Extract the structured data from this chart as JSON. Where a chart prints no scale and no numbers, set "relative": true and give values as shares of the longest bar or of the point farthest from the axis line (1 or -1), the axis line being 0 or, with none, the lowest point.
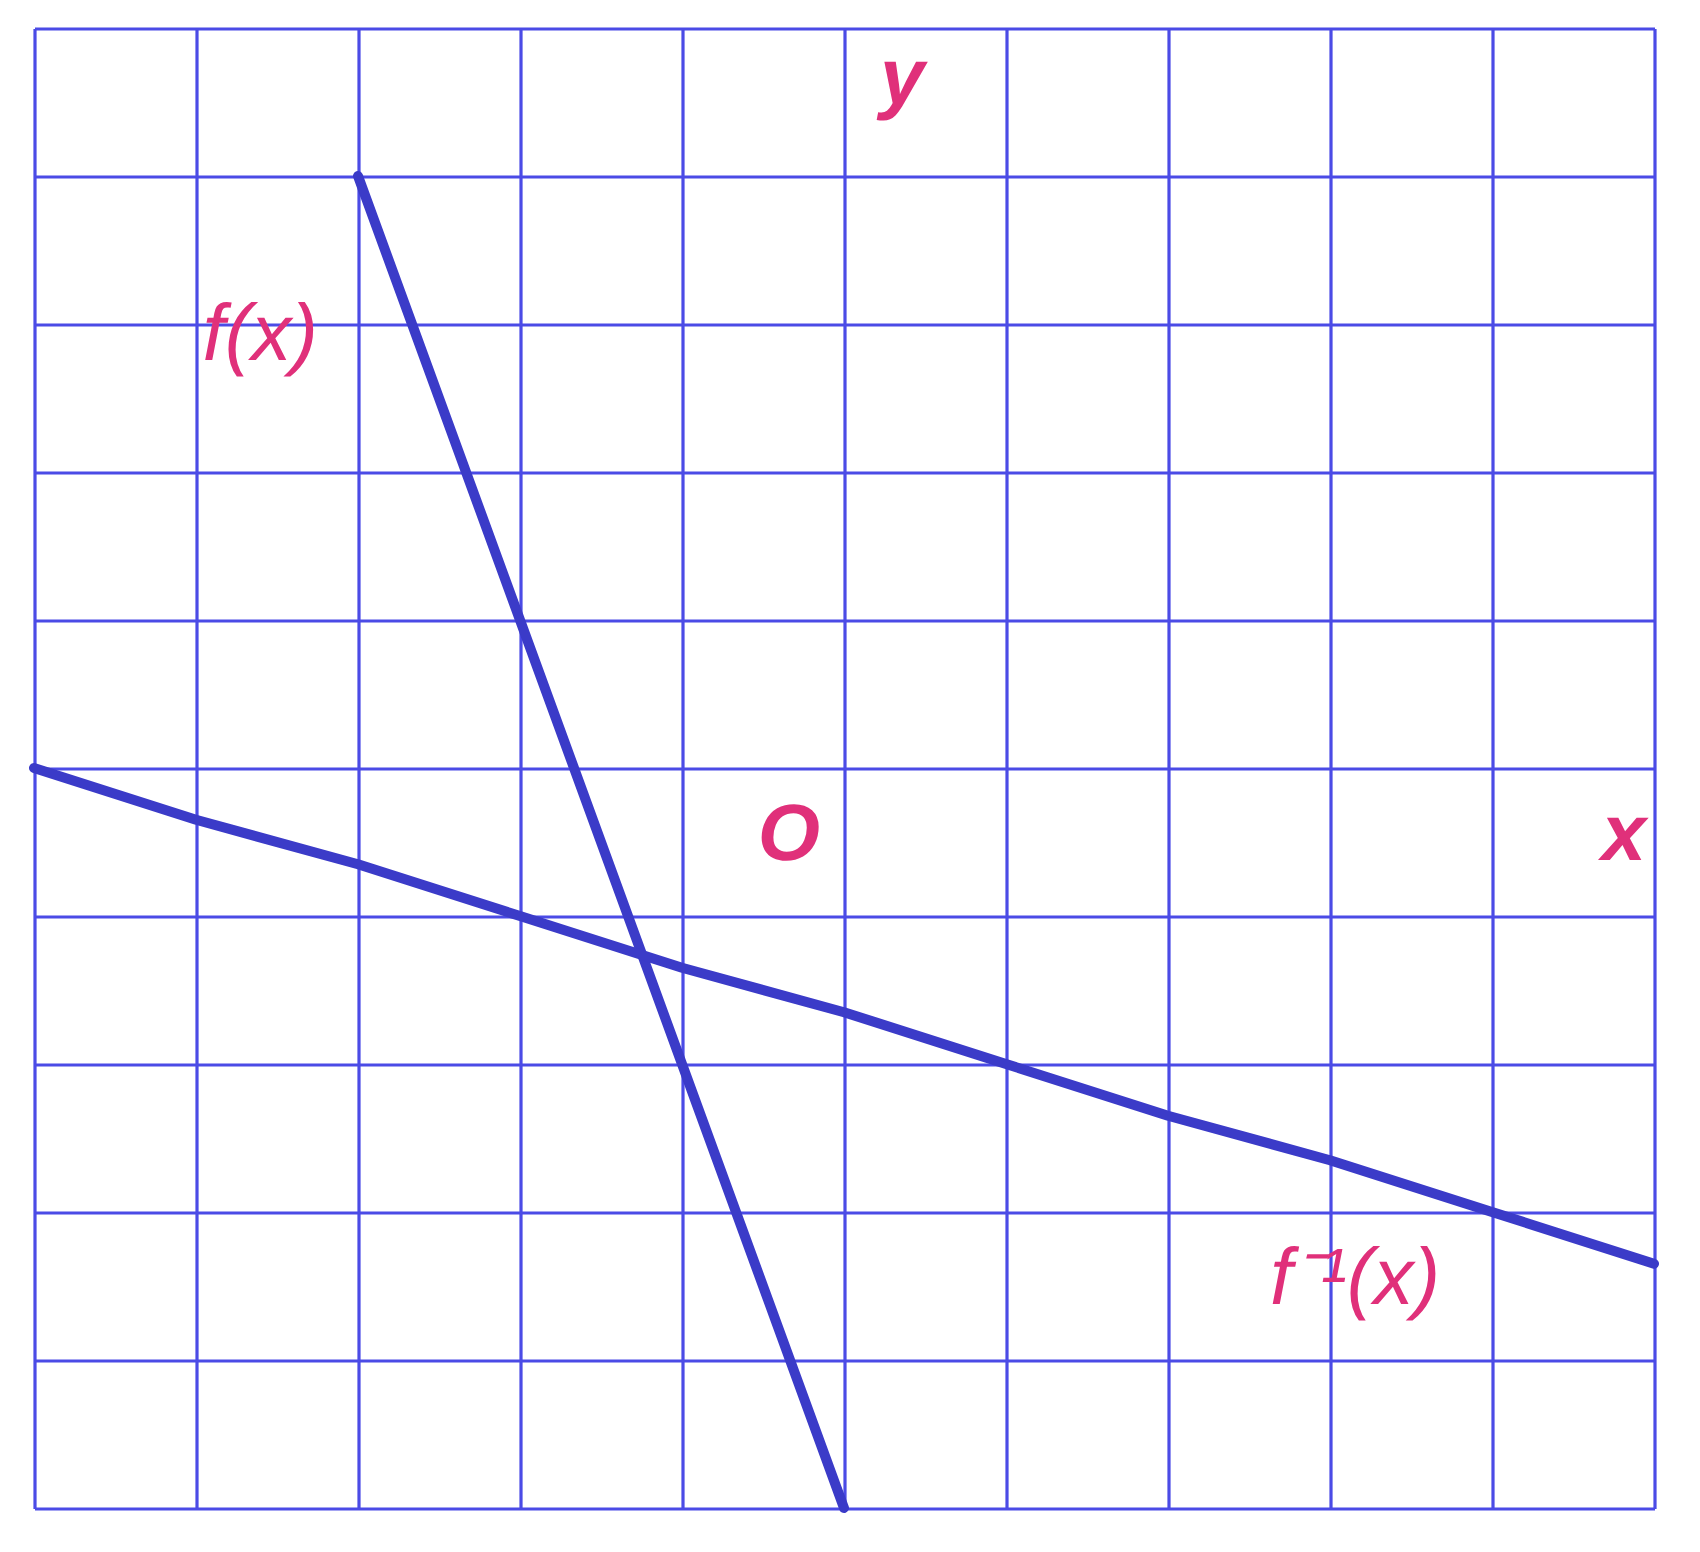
{
  "chart_data": {
    "type": "line",
    "xlabel": "x",
    "ylabel": "y",
    "annotations": [
      "O"
    ],
    "categories": [
      null,
      null,
      null,
      null,
      null,
      null,
      null,
      null,
      null,
      null,
      null
    ],
    "relative": true,
    "grid": true,
    "legend": false,
    "series": [
      {
        "name": "f(x)",
        "color": "#3b3bc8",
        "values": [
          null,
          null,
          0.8,
          0.2,
          -0.4,
          -1,
          null,
          null,
          null,
          null,
          null
        ]
      },
      {
        "name": "f⁻¹(x)",
        "color": "#3b3bc8",
        "values": [
          0,
          -0.07,
          -0.13,
          -0.2,
          -0.27,
          -0.33,
          -0.4,
          -0.47,
          -0.53,
          -0.6,
          -0.67
        ]
      }
    ]
  }
}
